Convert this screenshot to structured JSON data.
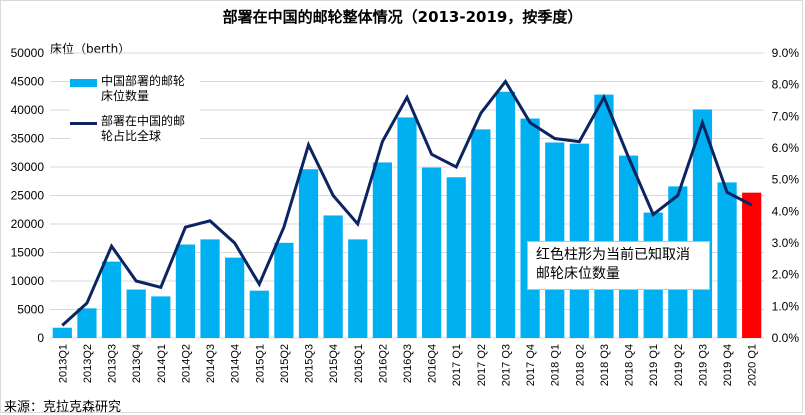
{
  "chart_data": {
    "type": "bar",
    "title": "部署在中国的邮轮整体情况（2013-2019，按季度）",
    "ylabel": "床位（berth）",
    "y2label": "",
    "xlabel": "",
    "ylim": [
      0,
      50000
    ],
    "y2lim": [
      0,
      0.09
    ],
    "yticks": [
      "0",
      "5000",
      "10000",
      "15000",
      "20000",
      "25000",
      "30000",
      "35000",
      "40000",
      "45000",
      "50000"
    ],
    "y2ticks": [
      "0.0%",
      "1.0%",
      "2.0%",
      "3.0%",
      "4.0%",
      "5.0%",
      "6.0%",
      "7.0%",
      "8.0%",
      "9.0%"
    ],
    "grid": true,
    "legend_position": "top-left",
    "categories": [
      "2013Q1",
      "2013Q2",
      "2013Q3",
      "2013Q4",
      "2014Q1",
      "2014Q2",
      "2014Q3",
      "2014Q4",
      "2015Q1",
      "2015Q2",
      "2015Q3",
      "2015Q4",
      "2016Q1",
      "2016Q2",
      "2016Q3",
      "2016Q4",
      "2017 Q1",
      "2017 Q2",
      "2017 Q3",
      "2017 Q4",
      "2018 Q1",
      "2018 Q2",
      "2018 Q3",
      "2018 Q4",
      "2019 Q1",
      "2019 Q2",
      "2019 Q3",
      "2019 Q4",
      "2020 Q1"
    ],
    "series": [
      {
        "name": "中国部署的邮轮床位数量",
        "type": "bar",
        "axis": "left",
        "color": "#00b0f0",
        "highlight_color": "#ff0000",
        "highlight_index": 28,
        "values": [
          1800,
          5200,
          13400,
          8500,
          7300,
          16400,
          17300,
          14100,
          8300,
          16700,
          29600,
          21500,
          17300,
          30800,
          38700,
          29900,
          28200,
          36600,
          43200,
          38500,
          34300,
          34100,
          42700,
          32000,
          22000,
          26600,
          40100,
          27300,
          25500
        ]
      },
      {
        "name": "部署在中国的邮轮占比全球",
        "type": "line",
        "axis": "right",
        "color": "#0c2461",
        "values": [
          0.004,
          0.011,
          0.029,
          0.018,
          0.016,
          0.035,
          0.037,
          0.03,
          0.017,
          0.035,
          0.061,
          0.045,
          0.036,
          0.062,
          0.076,
          0.058,
          0.054,
          0.071,
          0.081,
          0.068,
          0.063,
          0.062,
          0.076,
          0.057,
          0.039,
          0.045,
          0.068,
          0.046,
          0.042
        ]
      }
    ],
    "annotation": "红色柱形为当前已知取消邮轮床位数量"
  },
  "source": "来源：克拉克森研究"
}
